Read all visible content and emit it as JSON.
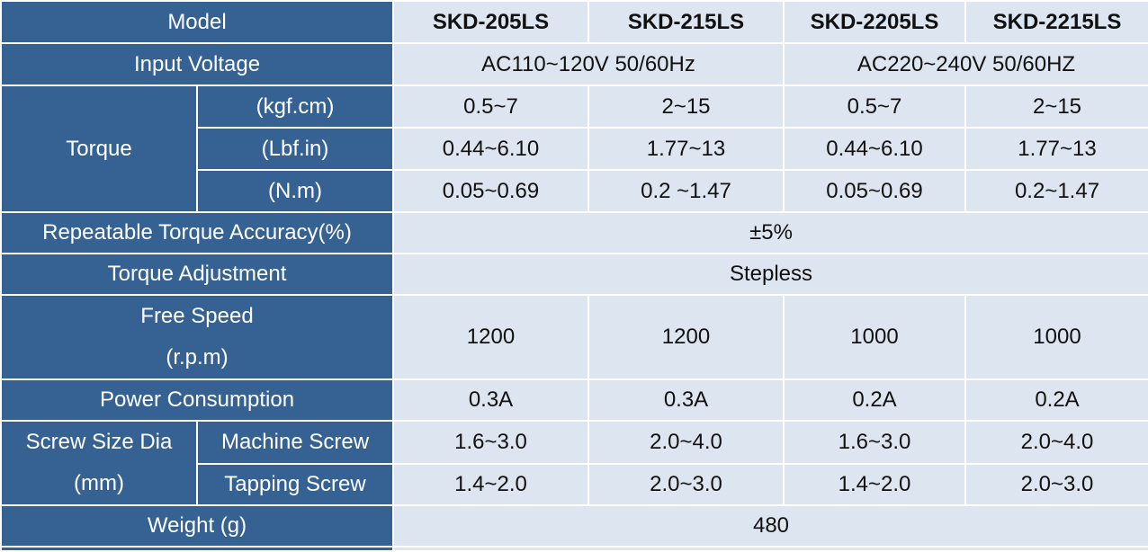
{
  "header": {
    "label": "Model",
    "models": [
      "SKD-205LS",
      "SKD-215LS",
      "SKD-2205LS",
      "SKD-2215LS"
    ]
  },
  "input_voltage": {
    "label": "Input Voltage",
    "values": [
      "AC110~120V 50/60Hz",
      "AC220~240V 50/60HZ"
    ]
  },
  "torque": {
    "label": "Torque",
    "rows": [
      {
        "unit": "(kgf.cm)",
        "values": [
          "0.5~7",
          "2~15",
          "0.5~7",
          "2~15"
        ]
      },
      {
        "unit": "(Lbf.in)",
        "values": [
          "0.44~6.10",
          "1.77~13",
          "0.44~6.10",
          "1.77~13"
        ]
      },
      {
        "unit": "(N.m)",
        "values": [
          "0.05~0.69",
          "0.2 ~1.47",
          "0.05~0.69",
          "0.2~1.47"
        ]
      }
    ]
  },
  "accuracy": {
    "label": "Repeatable Torque Accuracy(%)",
    "value": "±5%"
  },
  "adjustment": {
    "label": "Torque Adjustment",
    "value": "Stepless"
  },
  "free_speed": {
    "label_line1": "Free Speed",
    "label_line2": "(r.p.m)",
    "values": [
      "1200",
      "1200",
      "1000",
      "1000"
    ]
  },
  "power": {
    "label": "Power Consumption",
    "values": [
      "0.3A",
      "0.3A",
      "0.2A",
      "0.2A"
    ]
  },
  "screw": {
    "label_line1": "Screw Size Dia",
    "label_line2": "(mm)",
    "rows": [
      {
        "type": "Machine Screw",
        "values": [
          "1.6~3.0",
          "2.0~4.0",
          "1.6~3.0",
          "2.0~4.0"
        ]
      },
      {
        "type": "Tapping Screw",
        "values": [
          "1.4~2.0",
          "2.0~3.0",
          "1.4~2.0",
          "2.0~3.0"
        ]
      }
    ]
  },
  "weight": {
    "label": "Weight (g)",
    "value": "480"
  },
  "colors": {
    "label_bg": "#366293",
    "value_bg": "#dde5f0",
    "border": "#ffffff"
  }
}
